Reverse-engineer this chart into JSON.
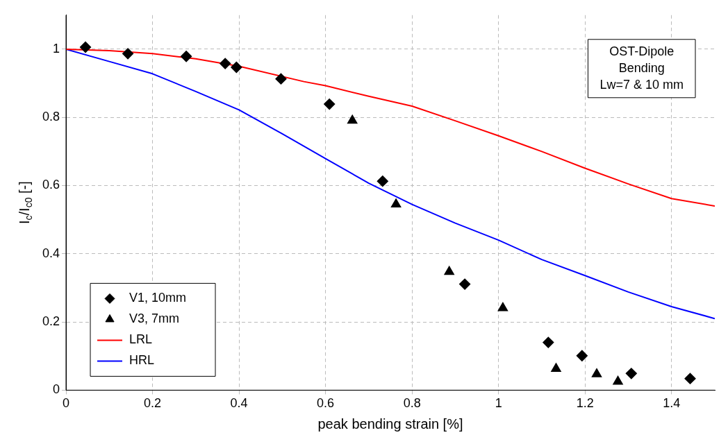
{
  "chart_data": {
    "type": "scatter",
    "xlabel": "peak bending strain [%]",
    "ylabel": "I$_{c}$/I$_{c0}$ [-]",
    "xlim": [
      0,
      1.5
    ],
    "ylim": [
      0,
      1.1
    ],
    "xticks": [
      0,
      0.2,
      0.4,
      0.6,
      0.8,
      1,
      1.2,
      1.4
    ],
    "yticks": [
      0,
      0.2,
      0.4,
      0.6,
      0.8,
      1
    ],
    "grid": true,
    "legend": "bottom left",
    "annotations": [
      "OST-Dipole\nBending\nLw=7 & 10 mm"
    ],
    "series": [
      {
        "name": "V1, 10mm",
        "marker": "diamond",
        "color": "#000000",
        "x": [
          0.045,
          0.143,
          0.278,
          0.368,
          0.394,
          0.497,
          0.609,
          0.732,
          0.922,
          1.115,
          1.193,
          1.307,
          1.443
        ],
        "values": [
          1.006,
          0.987,
          0.979,
          0.958,
          0.947,
          0.913,
          0.839,
          0.613,
          0.311,
          0.14,
          0.101,
          0.049,
          0.034
        ]
      },
      {
        "name": "V3, 7mm",
        "marker": "triangle",
        "color": "#000000",
        "x": [
          0.662,
          0.763,
          0.886,
          1.01,
          1.133,
          1.227,
          1.276
        ],
        "values": [
          0.791,
          0.545,
          0.347,
          0.241,
          0.063,
          0.047,
          0.025
        ]
      },
      {
        "name": "LRL",
        "type": "line",
        "marker": "none",
        "color": "#ff0000",
        "x": [
          0,
          0.1,
          0.2,
          0.3,
          0.4,
          0.55,
          0.6,
          0.7,
          0.8,
          0.9,
          1,
          1.1,
          1.2,
          1.3,
          1.4,
          1.5
        ],
        "values": [
          1,
          0.996,
          0.987,
          0.972,
          0.95,
          0.905,
          0.893,
          0.862,
          0.833,
          0.79,
          0.746,
          0.7,
          0.651,
          0.605,
          0.562,
          0.54
        ]
      },
      {
        "name": "HRL",
        "type": "line",
        "marker": "none",
        "color": "#0000ff",
        "x": [
          0,
          0.1,
          0.2,
          0.3,
          0.4,
          0.5,
          0.6,
          0.7,
          0.8,
          0.9,
          1,
          1.1,
          1.2,
          1.3,
          1.4,
          1.5
        ],
        "values": [
          1,
          0.964,
          0.928,
          0.876,
          0.822,
          0.752,
          0.679,
          0.607,
          0.545,
          0.49,
          0.44,
          0.383,
          0.336,
          0.288,
          0.245,
          0.21
        ]
      }
    ]
  }
}
